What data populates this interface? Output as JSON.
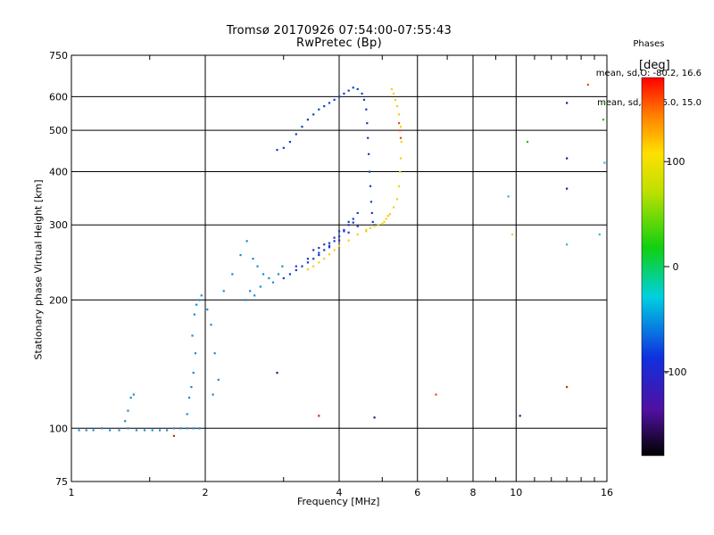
{
  "header": {
    "title_line1": "Tromsø 20170926 07:54:00-07:55:43",
    "title_line2": "RwPretec (Bp)"
  },
  "stats": {
    "heading": "Phases",
    "line_o": "mean, sd,O: -80.2, 16.6",
    "line_x": "mean, sd,X:  96.0, 15.0"
  },
  "colorbar": {
    "unit": "[deg]",
    "ticks": [
      "100",
      "0",
      "-100"
    ],
    "tick_values": [
      100,
      0,
      -100
    ],
    "range": [
      -180,
      180
    ]
  },
  "chart_data": {
    "type": "scatter",
    "xlabel": "Frequency [MHz]",
    "ylabel": "Stationary phase Virtual Height [km]",
    "x_scale": "log",
    "y_scale": "log",
    "xlim": [
      1,
      16
    ],
    "ylim": [
      75,
      750
    ],
    "x_ticks": [
      1,
      2,
      4,
      6,
      8,
      10,
      16
    ],
    "x_tick_labels": [
      "1",
      "2",
      "4",
      "6",
      "8",
      "10",
      "16"
    ],
    "y_ticks": [
      75,
      100,
      200,
      300,
      400,
      500,
      600,
      750
    ],
    "y_tick_labels": [
      "75",
      "100",
      "200",
      "300",
      "400",
      "500",
      "600",
      "750"
    ],
    "grid": true,
    "series": [
      {
        "color": "#1a8ad4",
        "points": [
          [
            1.04,
            99
          ],
          [
            1.08,
            99
          ],
          [
            1.12,
            99
          ],
          [
            1.17,
            100
          ],
          [
            1.22,
            99
          ],
          [
            1.28,
            99
          ],
          [
            1.34,
            100
          ],
          [
            1.4,
            99
          ],
          [
            1.46,
            99
          ],
          [
            1.52,
            99
          ],
          [
            1.58,
            99
          ],
          [
            1.64,
            99
          ],
          [
            1.7,
            100
          ],
          [
            1.76,
            100
          ],
          [
            1.82,
            100
          ],
          [
            1.88,
            100
          ],
          [
            1.94,
            100
          ],
          [
            1.32,
            104
          ],
          [
            1.34,
            110
          ],
          [
            1.36,
            118
          ],
          [
            1.38,
            120
          ],
          [
            1.82,
            108
          ],
          [
            1.84,
            118
          ],
          [
            1.86,
            125
          ],
          [
            1.88,
            135
          ],
          [
            1.9,
            150
          ],
          [
            1.87,
            165
          ],
          [
            1.89,
            185
          ],
          [
            1.91,
            195
          ],
          [
            1.94,
            200
          ],
          [
            1.96,
            205
          ],
          [
            2.02,
            190
          ],
          [
            2.06,
            175
          ],
          [
            2.1,
            150
          ],
          [
            2.14,
            130
          ],
          [
            2.08,
            120
          ],
          [
            2.2,
            210
          ],
          [
            2.3,
            230
          ],
          [
            2.4,
            255
          ],
          [
            2.48,
            275
          ],
          [
            2.56,
            250
          ],
          [
            2.62,
            240
          ],
          [
            2.7,
            230
          ],
          [
            2.78,
            225
          ],
          [
            2.84,
            220
          ],
          [
            2.92,
            230
          ],
          [
            2.98,
            240
          ],
          [
            2.52,
            210
          ],
          [
            2.46,
            200
          ],
          [
            2.58,
            205
          ],
          [
            2.66,
            215
          ]
        ]
      },
      {
        "color": "#0f3fc4",
        "points": [
          [
            2.9,
            450
          ],
          [
            3.0,
            455
          ],
          [
            3.1,
            470
          ],
          [
            3.2,
            490
          ],
          [
            3.3,
            510
          ],
          [
            3.4,
            530
          ],
          [
            3.5,
            545
          ],
          [
            3.6,
            560
          ],
          [
            3.7,
            570
          ],
          [
            3.8,
            580
          ],
          [
            3.9,
            590
          ],
          [
            4.0,
            600
          ],
          [
            4.1,
            610
          ],
          [
            4.2,
            620
          ],
          [
            4.3,
            630
          ],
          [
            4.4,
            625
          ],
          [
            4.5,
            610
          ],
          [
            4.55,
            590
          ],
          [
            4.6,
            560
          ],
          [
            4.62,
            520
          ],
          [
            4.64,
            480
          ],
          [
            4.66,
            440
          ],
          [
            4.68,
            400
          ],
          [
            4.7,
            370
          ],
          [
            4.72,
            340
          ],
          [
            4.74,
            320
          ],
          [
            4.76,
            305
          ],
          [
            4.8,
            300
          ],
          [
            3.0,
            225
          ],
          [
            3.1,
            230
          ],
          [
            3.2,
            235
          ],
          [
            3.3,
            240
          ],
          [
            3.4,
            245
          ],
          [
            3.5,
            250
          ],
          [
            3.6,
            255
          ],
          [
            3.7,
            262
          ],
          [
            3.8,
            268
          ],
          [
            3.9,
            275
          ],
          [
            4.0,
            282
          ],
          [
            4.1,
            290
          ],
          [
            4.2,
            300
          ],
          [
            4.3,
            310
          ],
          [
            4.4,
            320
          ],
          [
            3.6,
            265
          ],
          [
            3.8,
            272
          ],
          [
            4.0,
            290
          ],
          [
            4.2,
            305
          ]
        ]
      },
      {
        "color": "#2d2fcf",
        "points": [
          [
            3.2,
            240
          ],
          [
            3.4,
            250
          ],
          [
            3.6,
            258
          ],
          [
            3.8,
            266
          ],
          [
            4.0,
            276
          ],
          [
            4.2,
            288
          ],
          [
            4.4,
            298
          ],
          [
            3.5,
            262
          ],
          [
            3.7,
            270
          ],
          [
            3.9,
            280
          ],
          [
            4.1,
            292
          ],
          [
            4.3,
            304
          ]
        ]
      },
      {
        "color": "#f0d010",
        "points": [
          [
            3.4,
            236
          ],
          [
            3.5,
            240
          ],
          [
            3.6,
            245
          ],
          [
            3.7,
            250
          ],
          [
            3.8,
            256
          ],
          [
            3.9,
            262
          ],
          [
            4.0,
            268
          ],
          [
            4.2,
            276
          ],
          [
            4.4,
            285
          ],
          [
            4.6,
            292
          ],
          [
            4.8,
            298
          ],
          [
            5.0,
            302
          ],
          [
            5.1,
            310
          ],
          [
            5.2,
            318
          ],
          [
            5.3,
            330
          ],
          [
            5.4,
            345
          ],
          [
            5.45,
            370
          ],
          [
            5.48,
            400
          ],
          [
            5.5,
            430
          ],
          [
            5.52,
            470
          ],
          [
            5.5,
            510
          ],
          [
            5.45,
            545
          ],
          [
            5.4,
            570
          ],
          [
            5.35,
            590
          ],
          [
            5.3,
            610
          ],
          [
            5.25,
            625
          ],
          [
            4.6,
            290
          ],
          [
            4.7,
            295
          ],
          [
            4.9,
            300
          ],
          [
            5.05,
            305
          ],
          [
            5.15,
            315
          ],
          [
            9.8,
            285
          ]
        ]
      },
      {
        "color": "#e05010",
        "points": [
          [
            5.48,
            500
          ],
          [
            5.5,
            480
          ],
          [
            5.45,
            520
          ],
          [
            6.6,
            120
          ],
          [
            14.5,
            640
          ]
        ]
      },
      {
        "color": "#20c020",
        "points": [
          [
            10.6,
            470
          ],
          [
            15.8,
            580
          ],
          [
            15.7,
            530
          ]
        ]
      },
      {
        "color": "#20c0d0",
        "points": [
          [
            9.6,
            350
          ],
          [
            13.0,
            270
          ],
          [
            15.4,
            285
          ],
          [
            15.8,
            420
          ]
        ]
      },
      {
        "color": "#301090",
        "points": [
          [
            4.8,
            106
          ],
          [
            10.2,
            107
          ],
          [
            13.0,
            430
          ],
          [
            13.0,
            365
          ],
          [
            13.0,
            580
          ],
          [
            2.9,
            135
          ]
        ]
      },
      {
        "color": "#c03010",
        "points": [
          [
            13.0,
            125
          ],
          [
            1.7,
            96
          ],
          [
            3.6,
            107
          ]
        ]
      }
    ]
  }
}
